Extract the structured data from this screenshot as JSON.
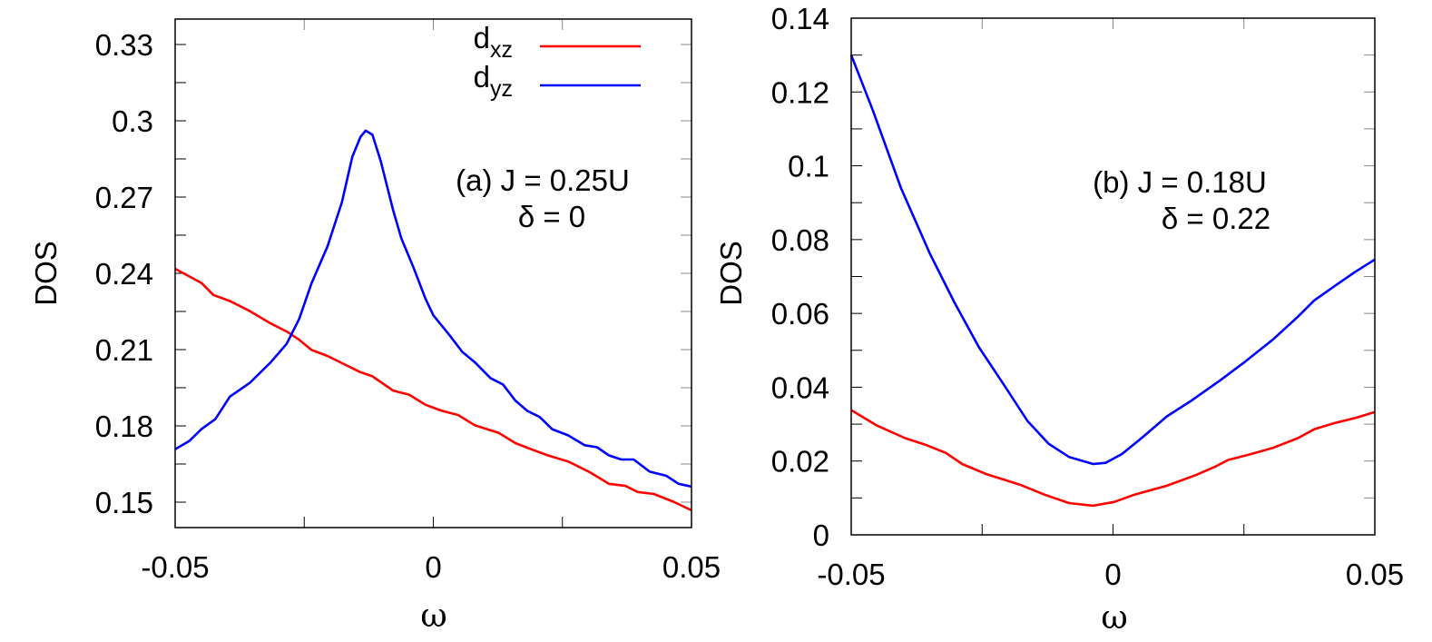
{
  "chart_data": [
    {
      "type": "line",
      "xlabel": "ω",
      "ylabel": "DOS",
      "xlim": [
        -0.05,
        0.05
      ],
      "ylim": [
        0.14,
        0.34
      ],
      "xticks": [
        -0.05,
        0,
        0.05
      ],
      "xtick_labels": [
        "-0.05",
        "0",
        "0.05"
      ],
      "xminor": [
        -0.025,
        0.025
      ],
      "yticks": [
        0.15,
        0.18,
        0.21,
        0.24,
        0.27,
        0.3,
        0.33
      ],
      "ytick_labels": [
        "0.15",
        "0.18",
        "0.21",
        "0.24",
        "0.27",
        "0.3",
        "0.33"
      ],
      "yminor": [
        0.165,
        0.195,
        0.225,
        0.255,
        0.285,
        0.315
      ],
      "grid": false,
      "legend": "top-right",
      "annotation": [
        "(a) J = 0.25U",
        "δ = 0"
      ],
      "series": [
        {
          "name": "dxz",
          "label_base": "d",
          "label_sub": "xz",
          "color": "#ff0000",
          "x": [
            -0.05,
            -0.0449,
            -0.0426,
            -0.0394,
            -0.0355,
            -0.0315,
            -0.0284,
            -0.026,
            -0.0236,
            -0.0205,
            -0.0173,
            -0.0141,
            -0.0118,
            -0.0078,
            -0.0047,
            -0.0015,
            0.0017,
            0.0048,
            0.008,
            0.0127,
            0.0159,
            0.019,
            0.0222,
            0.0261,
            0.0301,
            0.034,
            0.0372,
            0.0396,
            0.0427,
            0.0467,
            0.05
          ],
          "y": [
            0.2418,
            0.2362,
            0.2315,
            0.2291,
            0.2251,
            0.2203,
            0.2171,
            0.2139,
            0.2099,
            0.2075,
            0.2043,
            0.2011,
            0.1995,
            0.1939,
            0.1923,
            0.1883,
            0.1859,
            0.1843,
            0.1803,
            0.1772,
            0.1732,
            0.1708,
            0.1684,
            0.166,
            0.162,
            0.1572,
            0.1564,
            0.154,
            0.1532,
            0.15,
            0.1468
          ]
        },
        {
          "name": "dyz",
          "label_base": "d",
          "label_sub": "yz",
          "color": "#0000ff",
          "x": [
            -0.05,
            -0.0473,
            -0.0449,
            -0.0422,
            -0.0394,
            -0.0355,
            -0.0315,
            -0.0284,
            -0.026,
            -0.0236,
            -0.0205,
            -0.0177,
            -0.0157,
            -0.0141,
            -0.0131,
            -0.0118,
            -0.0102,
            -0.0078,
            -0.0062,
            -0.0039,
            -0.0015,
            0.0,
            0.0032,
            0.0056,
            0.008,
            0.0111,
            0.0135,
            0.0159,
            0.0182,
            0.0206,
            0.023,
            0.0261,
            0.0293,
            0.0317,
            0.034,
            0.0364,
            0.0388,
            0.0419,
            0.0451,
            0.0475,
            0.05
          ],
          "y": [
            0.1708,
            0.174,
            0.1787,
            0.1827,
            0.1915,
            0.197,
            0.205,
            0.2123,
            0.222,
            0.236,
            0.2506,
            0.268,
            0.2858,
            0.2937,
            0.2961,
            0.2945,
            0.2842,
            0.265,
            0.2538,
            0.2426,
            0.2299,
            0.2235,
            0.2155,
            0.2091,
            0.2051,
            0.1987,
            0.1963,
            0.1899,
            0.1859,
            0.1835,
            0.1787,
            0.1763,
            0.1724,
            0.1716,
            0.1684,
            0.1668,
            0.1668,
            0.162,
            0.1604,
            0.1572,
            0.1561
          ]
        }
      ]
    },
    {
      "type": "line",
      "xlabel": "ω",
      "ylabel": "DOS",
      "xlim": [
        -0.05,
        0.05
      ],
      "ylim": [
        0,
        0.14
      ],
      "xticks": [
        -0.05,
        0,
        0.05
      ],
      "xtick_labels": [
        "-0.05",
        "0",
        "0.05"
      ],
      "xminor": [
        -0.025,
        0.025
      ],
      "yticks": [
        0,
        0.02,
        0.04,
        0.06,
        0.08,
        0.1,
        0.12,
        0.14
      ],
      "ytick_labels": [
        "0",
        "0.02",
        "0.04",
        "0.06",
        "0.08",
        "0.1",
        "0.12",
        "0.14"
      ],
      "yminor": [
        0.01,
        0.03,
        0.05,
        0.07,
        0.09,
        0.11,
        0.13
      ],
      "grid": false,
      "annotation": [
        "(b) J = 0.18U",
        "δ = 0.22"
      ],
      "series": [
        {
          "color": "#ff0000",
          "x": [
            -0.05,
            -0.0452,
            -0.0397,
            -0.0358,
            -0.0319,
            -0.0288,
            -0.0241,
            -0.0178,
            -0.0131,
            -0.0084,
            -0.0038,
            0.0002,
            0.0041,
            0.0103,
            0.0158,
            0.0197,
            0.022,
            0.0259,
            0.0306,
            0.0353,
            0.0384,
            0.0423,
            0.0463,
            0.05
          ],
          "y": [
            0.0338,
            0.0297,
            0.0262,
            0.0244,
            0.0222,
            0.0192,
            0.0164,
            0.0136,
            0.0109,
            0.0086,
            0.0079,
            0.0089,
            0.0109,
            0.0133,
            0.0162,
            0.0186,
            0.0203,
            0.0217,
            0.0236,
            0.0262,
            0.0286,
            0.0303,
            0.0317,
            0.0333
          ]
        },
        {
          "color": "#0000ff",
          "x": [
            -0.05,
            -0.0459,
            -0.0405,
            -0.035,
            -0.0303,
            -0.0256,
            -0.0209,
            -0.0163,
            -0.0123,
            -0.0084,
            -0.0038,
            -0.0014,
            0.0017,
            0.0056,
            0.0103,
            0.015,
            0.0205,
            0.0252,
            0.0306,
            0.0353,
            0.0384,
            0.0423,
            0.0463,
            0.05
          ],
          "y": [
            0.13,
            0.1151,
            0.094,
            0.0763,
            0.063,
            0.0508,
            0.0408,
            0.0308,
            0.0247,
            0.0211,
            0.0192,
            0.0195,
            0.0219,
            0.0264,
            0.0321,
            0.0364,
            0.0419,
            0.0469,
            0.053,
            0.0591,
            0.0635,
            0.0674,
            0.0713,
            0.0746
          ]
        }
      ]
    }
  ]
}
